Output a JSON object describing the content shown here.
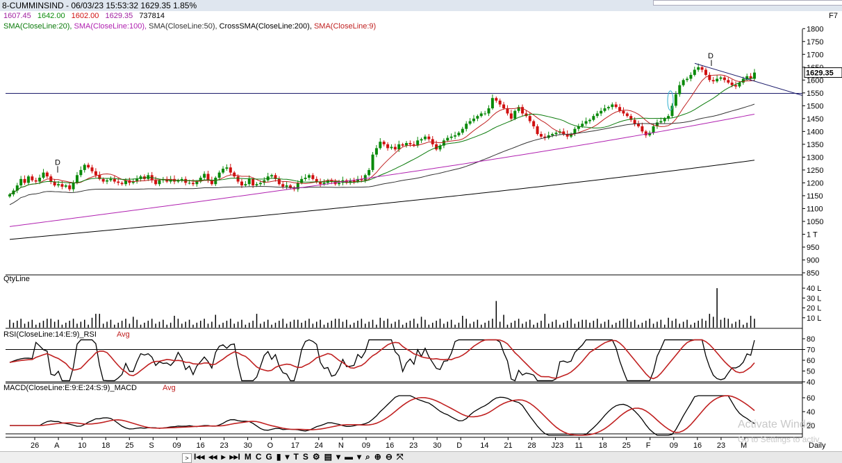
{
  "title": "8-CUMMINSIND - 06/03/23 15:53:32 1629.35 1.85%",
  "f_key": "F7",
  "ohlc": {
    "open": "1607.45",
    "high": "1642.00",
    "low": "1602.00",
    "close": "1629.35",
    "volume": "737814",
    "open_color": "#a020a0",
    "high_color": "#0a8a0a",
    "low_color": "#d01010",
    "close_color": "#a020a0",
    "volume_color": "#000000"
  },
  "indicators": [
    {
      "label": "SMA(CloseLine:20),",
      "color": "#0a7a0a"
    },
    {
      "label": "SMA(CloseLine:100),",
      "color": "#b020b0"
    },
    {
      "label": "SMA(CloseLine:50),",
      "color": "#333333"
    },
    {
      "label": "CrossSMA(CloseLine:200),",
      "color": "#000000"
    },
    {
      "label": "SMA(CloseLine:9)",
      "color": "#c02020"
    }
  ],
  "panels": {
    "qty_label": "QtyLine",
    "rsi_label": "RSI(CloseLine:14:E:9)_RSI",
    "rsi_avg": "Avg",
    "macd_label": "MACD(CloseLine:E:9:E:24:S:9)_MACD",
    "macd_avg": "Avg"
  },
  "chart_data": {
    "type": "candlestick",
    "price_axis": {
      "ticks": [
        "1800",
        "1750",
        "1700",
        "1650",
        "1600",
        "1550",
        "1500",
        "1450",
        "1400",
        "1350",
        "1300",
        "1250",
        "1200",
        "1150",
        "1100",
        "1050",
        "1 T",
        "950",
        "900",
        "850"
      ],
      "range": [
        850,
        1825
      ]
    },
    "last_price": "1629.35",
    "x_ticks": [
      "26",
      "A",
      "10",
      "18",
      "25",
      "S",
      "09",
      "16",
      "23",
      "30",
      "O",
      "17",
      "24",
      "N",
      "09",
      "16",
      "23",
      "30",
      "D",
      "14",
      "21",
      "28",
      "J23",
      "11",
      "18",
      "25",
      "F",
      "09",
      "16",
      "23",
      "M"
    ],
    "closes": [
      1155,
      1170,
      1190,
      1215,
      1200,
      1225,
      1210,
      1205,
      1220,
      1240,
      1225,
      1205,
      1190,
      1195,
      1185,
      1190,
      1175,
      1200,
      1230,
      1250,
      1270,
      1260,
      1245,
      1230,
      1215,
      1205,
      1210,
      1215,
      1205,
      1200,
      1195,
      1210,
      1200,
      1205,
      1215,
      1225,
      1215,
      1230,
      1210,
      1195,
      1210,
      1215,
      1205,
      1215,
      1205,
      1210,
      1215,
      1200,
      1200,
      1195,
      1205,
      1220,
      1235,
      1210,
      1195,
      1220,
      1240,
      1255,
      1260,
      1240,
      1225,
      1205,
      1190,
      1195,
      1215,
      1190,
      1195,
      1200,
      1210,
      1225,
      1230,
      1215,
      1195,
      1185,
      1190,
      1180,
      1175,
      1200,
      1215,
      1220,
      1230,
      1215,
      1205,
      1195,
      1200,
      1210,
      1205,
      1195,
      1200,
      1210,
      1200,
      1210,
      1205,
      1215,
      1210,
      1230,
      1250,
      1310,
      1335,
      1360,
      1350,
      1335,
      1340,
      1330,
      1350,
      1345,
      1355,
      1350,
      1345,
      1365,
      1370,
      1380,
      1370,
      1350,
      1330,
      1345,
      1365,
      1375,
      1380,
      1385,
      1395,
      1410,
      1430,
      1440,
      1450,
      1460,
      1470,
      1470,
      1490,
      1530,
      1520,
      1505,
      1490,
      1470,
      1450,
      1480,
      1495,
      1470,
      1460,
      1440,
      1420,
      1390,
      1380,
      1375,
      1385,
      1390,
      1395,
      1400,
      1390,
      1380,
      1390,
      1410,
      1420,
      1430,
      1440,
      1445,
      1460,
      1470,
      1480,
      1490,
      1495,
      1505,
      1495,
      1480,
      1470,
      1460,
      1445,
      1430,
      1420,
      1400,
      1385,
      1395,
      1420,
      1435,
      1440,
      1450,
      1460,
      1500,
      1545,
      1580,
      1600,
      1605,
      1620,
      1640,
      1650,
      1640,
      1620,
      1600,
      1595,
      1605,
      1610,
      1600,
      1590,
      1580,
      1575,
      1590,
      1605,
      1615,
      1605,
      1629
    ],
    "volume_axis": {
      "ticks": [
        "40 L",
        "30 L",
        "20 L",
        "10 L"
      ],
      "max_lakh": 45
    },
    "rsi_axis": {
      "ticks": [
        "80",
        "70",
        "60",
        "50",
        "40"
      ],
      "reference_lines": [
        70,
        40
      ]
    },
    "macd_axis": {
      "ticks": [
        "60",
        "40",
        "20"
      ]
    }
  },
  "watermark": {
    "line1": "Activate Windo",
    "line2": "Go to Settings to activ"
  },
  "toolbar": {
    "items": [
      "I◂◂",
      "◂◂",
      "▸",
      "▸▸I",
      "M",
      "C",
      "G",
      "▮",
      "▾",
      "T",
      "S",
      "⚙",
      "▤",
      "▾",
      "▬",
      "▾",
      "⌕",
      "⊕",
      "⊖",
      "⤧"
    ]
  },
  "timeframe": "Daily"
}
